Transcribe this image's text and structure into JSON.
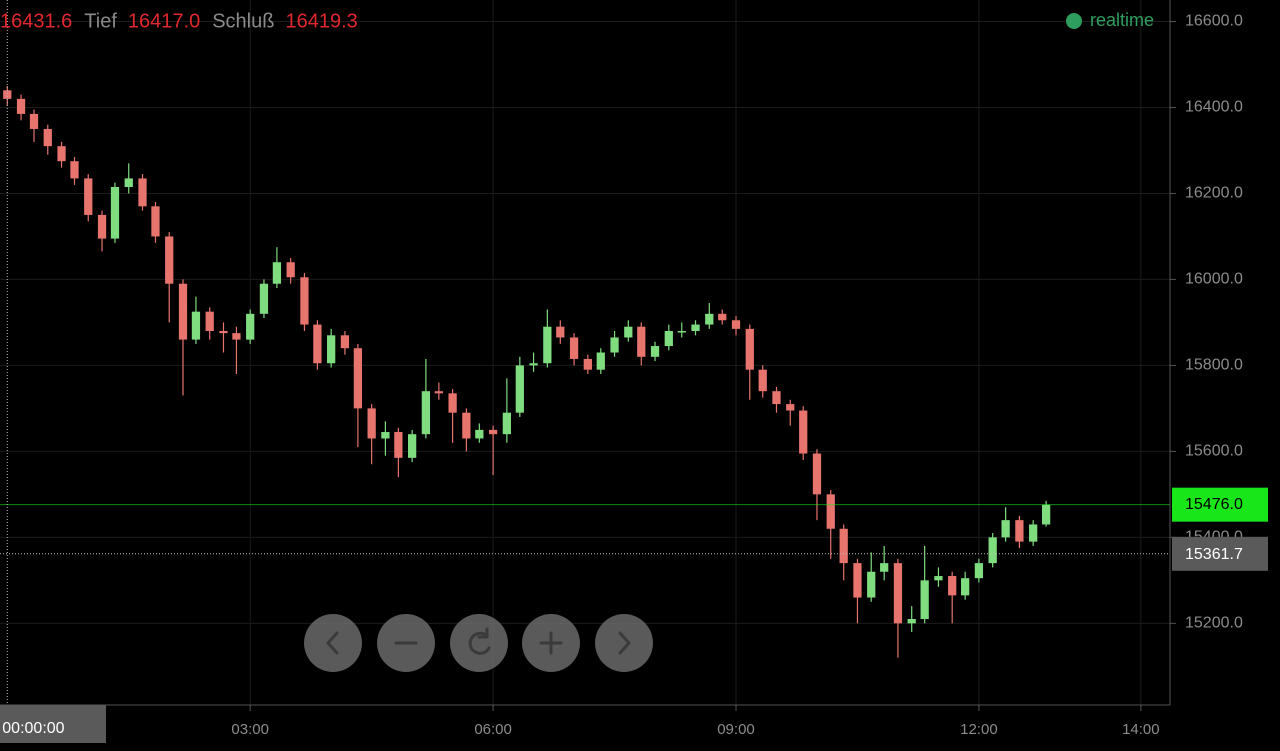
{
  "chart_data": {
    "type": "candlestick",
    "info": [
      {
        "label": null,
        "value": "16431.6"
      },
      {
        "label": "Tief",
        "value": "16417.0"
      },
      {
        "label": "Schluß",
        "value": "16419.3"
      }
    ],
    "status": "realtime",
    "colors": {
      "up": "#7fdc7f",
      "down": "#e8746e"
    },
    "x": [
      0,
      0.17,
      0.33,
      0.5,
      0.67,
      0.83,
      1,
      1.17,
      1.33,
      1.5,
      1.67,
      1.83,
      2,
      2.17,
      2.33,
      2.5,
      2.67,
      2.83,
      3,
      3.17,
      3.33,
      3.5,
      3.67,
      3.83,
      4,
      4.17,
      4.33,
      4.5,
      4.67,
      4.83,
      5,
      5.17,
      5.33,
      5.5,
      5.67,
      5.83,
      6,
      6.17,
      6.33,
      6.5,
      6.67,
      6.83,
      7,
      7.17,
      7.33,
      7.5,
      7.67,
      7.83,
      8,
      8.17,
      8.33,
      8.5,
      8.67,
      8.83,
      9,
      9.17,
      9.33,
      9.5,
      9.67,
      9.83,
      10,
      10.17,
      10.33,
      10.5,
      10.67,
      10.83,
      11,
      11.17,
      11.33,
      11.5,
      11.67,
      11.83,
      12,
      12.17,
      12.33,
      12.5,
      12.67,
      12.83
    ],
    "open": [
      16440,
      16420,
      16385,
      16350,
      16310,
      16275,
      16235,
      16150,
      16095,
      16215,
      16235,
      16170,
      16100,
      15990,
      15860,
      15925,
      15880,
      15875,
      15860,
      15920,
      15990,
      16040,
      16005,
      15895,
      15805,
      15870,
      15840,
      15700,
      15630,
      15645,
      15585,
      15640,
      15740,
      15735,
      15690,
      15630,
      15650,
      15640,
      15690,
      15800,
      15805,
      15890,
      15865,
      15815,
      15790,
      15830,
      15865,
      15890,
      15820,
      15845,
      15880,
      15880,
      15895,
      15920,
      15905,
      15885,
      15790,
      15740,
      15710,
      15695,
      15595,
      15500,
      15420,
      15340,
      15260,
      15320,
      15340,
      15200,
      15210,
      15300,
      15310,
      15265,
      15305,
      15340,
      15400,
      15440,
      15390,
      15430
    ],
    "high": [
      16450,
      16430,
      16395,
      16360,
      16320,
      16285,
      16245,
      16160,
      16225,
      16270,
      16245,
      16180,
      16110,
      16000,
      15960,
      15935,
      15900,
      15890,
      15930,
      16000,
      16075,
      16050,
      16015,
      15905,
      15885,
      15880,
      15850,
      15710,
      15670,
      15655,
      15650,
      15815,
      15760,
      15745,
      15700,
      15665,
      15660,
      15770,
      15820,
      15830,
      15930,
      15905,
      15875,
      15825,
      15840,
      15880,
      15905,
      15900,
      15855,
      15895,
      15900,
      15905,
      15945,
      15930,
      15915,
      15895,
      15800,
      15750,
      15720,
      15705,
      15605,
      15510,
      15430,
      15350,
      15365,
      15380,
      15350,
      15240,
      15380,
      15330,
      15320,
      15320,
      15350,
      15410,
      15470,
      15450,
      15440,
      15485
    ],
    "low": [
      16405,
      16370,
      16320,
      16290,
      16260,
      16220,
      16135,
      16065,
      16085,
      16200,
      16160,
      16085,
      15900,
      15730,
      15850,
      15860,
      15830,
      15780,
      15850,
      15910,
      15980,
      15990,
      15880,
      15790,
      15795,
      15825,
      15610,
      15570,
      15590,
      15540,
      15575,
      15630,
      15720,
      15620,
      15600,
      15620,
      15545,
      15620,
      15680,
      15785,
      15795,
      15850,
      15800,
      15780,
      15780,
      15820,
      15855,
      15800,
      15810,
      15835,
      15865,
      15870,
      15885,
      15895,
      15870,
      15720,
      15725,
      15690,
      15660,
      15580,
      15440,
      15350,
      15300,
      15200,
      15250,
      15300,
      15120,
      15180,
      15200,
      15285,
      15200,
      15255,
      15295,
      15330,
      15390,
      15375,
      15380,
      15425
    ],
    "close": [
      16420,
      16385,
      16350,
      16310,
      16275,
      16235,
      16150,
      16095,
      16215,
      16235,
      16170,
      16100,
      15990,
      15860,
      15925,
      15880,
      15875,
      15860,
      15920,
      15990,
      16040,
      16005,
      15895,
      15805,
      15870,
      15840,
      15700,
      15630,
      15645,
      15585,
      15640,
      15740,
      15735,
      15690,
      15630,
      15650,
      15640,
      15690,
      15800,
      15805,
      15890,
      15865,
      15815,
      15790,
      15830,
      15865,
      15890,
      15820,
      15845,
      15880,
      15880,
      15895,
      15920,
      15905,
      15885,
      15790,
      15740,
      15710,
      15695,
      15595,
      15500,
      15420,
      15340,
      15260,
      15320,
      15340,
      15200,
      15210,
      15300,
      15310,
      15265,
      15305,
      15340,
      15400,
      15440,
      15390,
      15430,
      15476
    ],
    "xlim": [
      -0.09,
      14.36
    ],
    "ylim": [
      15010,
      16650
    ],
    "xticks": [
      {
        "value": 3,
        "label": "03:00"
      },
      {
        "value": 6,
        "label": "06:00"
      },
      {
        "value": 9,
        "label": "09:00"
      },
      {
        "value": 12,
        "label": "12:00"
      },
      {
        "value": 14,
        "label": "14:00"
      }
    ],
    "yticks": [
      {
        "value": 15200,
        "label": "15200.0"
      },
      {
        "value": 15400,
        "label": "15400.0"
      },
      {
        "value": 15600,
        "label": "15600.0"
      },
      {
        "value": 15800,
        "label": "15800.0"
      },
      {
        "value": 16000,
        "label": "16000.0"
      },
      {
        "value": 16200,
        "label": "16200.0"
      },
      {
        "value": 16400,
        "label": "16400.0"
      },
      {
        "value": 16600,
        "label": "16600.0"
      }
    ],
    "grid": true,
    "last_price": {
      "value": 15476,
      "label": "15476.0",
      "color": "#19e619"
    },
    "crosshair": {
      "x": 0,
      "x_label": "00:00:00",
      "y": 15361.7,
      "y_label": "15361.7"
    }
  }
}
